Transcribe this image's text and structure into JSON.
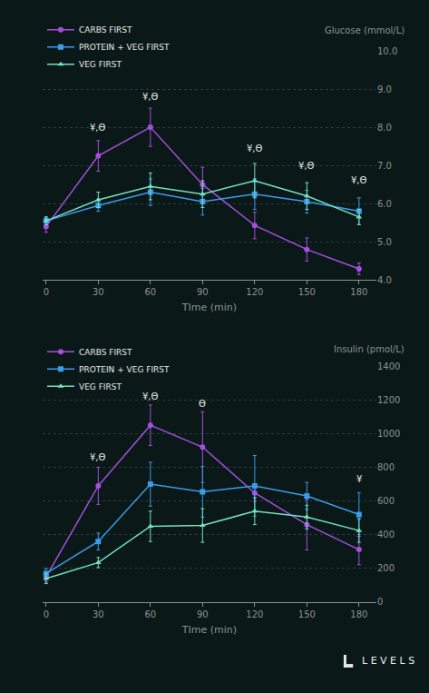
{
  "chart_data": [
    {
      "type": "line",
      "xlabel": "TIme (min)",
      "ylabel": "Glucose (mmol/L)",
      "x": [
        0,
        30,
        60,
        90,
        120,
        150,
        180
      ],
      "xlim": [
        -2,
        190
      ],
      "xticks": [
        0,
        30,
        60,
        90,
        120,
        150,
        180
      ],
      "ylim": [
        4,
        10
      ],
      "yticks": [
        {
          "value": 4,
          "label": "4.0"
        },
        {
          "value": 5,
          "label": "5.0"
        },
        {
          "value": 6,
          "label": "6.0"
        },
        {
          "value": 7,
          "label": "7.0"
        },
        {
          "value": 8,
          "label": "8.0"
        },
        {
          "value": 9,
          "label": "9.0"
        },
        {
          "value": 10,
          "label": "10.0"
        }
      ],
      "grid": true,
      "legend": "upper left",
      "series": [
        {
          "name": "CARBS FIRST",
          "color": "#a54fe0",
          "marker": "circle",
          "values": [
            5.4,
            7.25,
            8.0,
            6.5,
            5.43,
            4.8,
            4.29
          ],
          "errors": [
            0.15,
            0.4,
            0.5,
            0.45,
            0.35,
            0.3,
            0.15
          ]
        },
        {
          "name": "PROTEIN + VEG FIRST",
          "color": "#3b9cea",
          "marker": "square",
          "values": [
            5.55,
            5.95,
            6.3,
            6.05,
            6.25,
            6.05,
            5.8
          ],
          "errors": [
            0.1,
            0.15,
            0.35,
            0.35,
            0.4,
            0.3,
            0.35
          ]
        },
        {
          "name": "VEG FIRST",
          "color": "#74e0c0",
          "marker": "triangle",
          "values": [
            5.55,
            6.1,
            6.45,
            6.25,
            6.6,
            6.2,
            5.65
          ],
          "errors": [
            0.1,
            0.2,
            0.35,
            0.35,
            0.45,
            0.35,
            0.2
          ]
        }
      ],
      "annotations": [
        {
          "x": 30,
          "y": 7.98,
          "text": "¥,Θ"
        },
        {
          "x": 60,
          "y": 8.8,
          "text": "¥,Θ"
        },
        {
          "x": 120,
          "y": 7.45,
          "text": "¥,Θ"
        },
        {
          "x": 150,
          "y": 6.98,
          "text": "¥,Θ"
        },
        {
          "x": 180,
          "y": 6.6,
          "text": "¥,Θ"
        }
      ]
    },
    {
      "type": "line",
      "xlabel": "TIme (min)",
      "ylabel": "Insulin (pmol/L)",
      "x": [
        0,
        30,
        60,
        90,
        120,
        150,
        180
      ],
      "xlim": [
        -2,
        190
      ],
      "xticks": [
        0,
        30,
        60,
        90,
        120,
        150,
        180
      ],
      "ylim": [
        0,
        1400
      ],
      "yticks": [
        0,
        200,
        400,
        600,
        800,
        1000,
        1200,
        1400
      ],
      "grid": true,
      "legend": "upper left",
      "series": [
        {
          "name": "CARBS FIRST",
          "color": "#a54fe0",
          "marker": "circle",
          "values": [
            150,
            690,
            1050,
            920,
            648,
            460,
            312
          ],
          "errors": [
            30,
            110,
            120,
            210,
            50,
            150,
            90
          ]
        },
        {
          "name": "PROTEIN + VEG FIRST",
          "color": "#3b9cea",
          "marker": "square",
          "values": [
            170,
            360,
            700,
            655,
            690,
            630,
            520
          ],
          "errors": [
            30,
            50,
            130,
            150,
            180,
            80,
            130
          ]
        },
        {
          "name": "VEG FIRST",
          "color": "#74e0c0",
          "marker": "triangle",
          "values": [
            140,
            235,
            450,
            455,
            540,
            505,
            425
          ],
          "errors": [
            30,
            30,
            90,
            100,
            80,
            70,
            70
          ]
        }
      ],
      "annotations": [
        {
          "x": 30,
          "y": 860,
          "text": "¥,Θ"
        },
        {
          "x": 60,
          "y": 1220,
          "text": "¥,Θ"
        },
        {
          "x": 90,
          "y": 1180,
          "text": "Θ"
        },
        {
          "x": 180,
          "y": 730,
          "text": "¥"
        }
      ]
    }
  ],
  "brand": "LEVELS"
}
